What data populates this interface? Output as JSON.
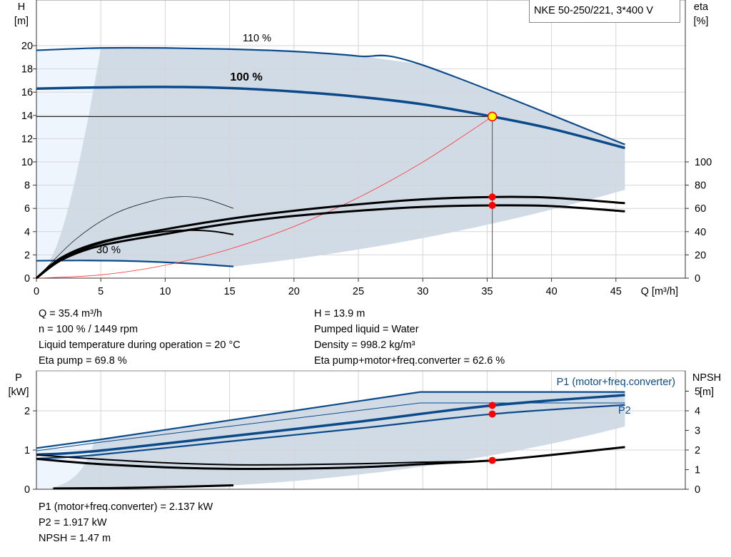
{
  "title": "NKE 50-250/221, 3*400 V",
  "colors": {
    "curve": "#0b4a8a",
    "shade": "#d0dbe6",
    "shade_light": "#eef5fc",
    "duty_point": "#ff0000",
    "system_curve": "#ff3030",
    "eta": "#000000"
  },
  "info_top_left": [
    "Q = 35.4 m³/h",
    "n = 100 % / 1449 rpm",
    "Liquid temperature during operation = 20 °C",
    "Eta pump = 69.8 %"
  ],
  "info_top_right": [
    "H = 13.9 m",
    "Pumped liquid = Water",
    "Density = 998.2 kg/m³",
    "Eta pump+motor+freq.converter = 62.6 %"
  ],
  "info_bottom": [
    "P1 (motor+freq.converter) = 2.137 kW",
    "P2 = 1.917 kW",
    "NPSH = 1.47 m"
  ],
  "chart_data": [
    {
      "type": "line",
      "ylabel": "H\n[m]",
      "y2label": "eta\n[%]",
      "xlabel": "Q [m³/h]",
      "xlim": [
        0,
        50
      ],
      "ylim": [
        0,
        24
      ],
      "y2lim": [
        0,
        240
      ],
      "xticks": [
        0,
        5,
        10,
        15,
        20,
        25,
        30,
        35,
        40,
        45
      ],
      "yticks": [
        0,
        2,
        4,
        6,
        8,
        10,
        12,
        14,
        16,
        18,
        20
      ],
      "y2ticks": [
        0,
        20,
        40,
        60,
        80,
        100
      ],
      "grid": true,
      "annotations": [
        "110 %",
        "100 %",
        "30 %"
      ],
      "duty_point": {
        "Q": 35.4,
        "H": 13.9,
        "eta_pump": 69.8,
        "eta_total": 62.6
      },
      "series": [
        {
          "name": "110 %",
          "axis": "H",
          "points": [
            [
              0,
              19.6
            ],
            [
              5,
              19.8
            ],
            [
              10,
              19.8
            ],
            [
              15,
              19.7
            ],
            [
              20,
              19.5
            ],
            [
              25,
              19.1
            ],
            [
              29.8,
              18.4
            ],
            [
              45.7,
              11.5
            ]
          ]
        },
        {
          "name": "100 %",
          "axis": "H",
          "points": [
            [
              0,
              16.3
            ],
            [
              4.5,
              16.4
            ],
            [
              10,
              16.45
            ],
            [
              15,
              16.35
            ],
            [
              20,
              16.05
            ],
            [
              25,
              15.6
            ],
            [
              30,
              14.95
            ],
            [
              35.4,
              13.9
            ],
            [
              40,
              12.85
            ],
            [
              45.7,
              11.2
            ]
          ]
        },
        {
          "name": "30 %",
          "axis": "H",
          "points": [
            [
              0,
              1.5
            ],
            [
              4,
              1.52
            ],
            [
              8,
              1.45
            ],
            [
              12,
              1.25
            ],
            [
              15.3,
              1.0
            ]
          ]
        },
        {
          "axis": "H",
          "kind": "system",
          "points": [
            [
              0,
              0
            ],
            [
              5,
              0.28
            ],
            [
              10,
              1.11
            ],
            [
              15,
              2.5
            ],
            [
              20,
              4.44
            ],
            [
              25,
              6.93
            ],
            [
              30,
              9.98
            ],
            [
              35.4,
              13.9
            ]
          ]
        },
        {
          "axis": "eta",
          "kind": "eta_pump",
          "points": [
            [
              0,
              0
            ],
            [
              2,
              18
            ],
            [
              5,
              31
            ],
            [
              10,
              42
            ],
            [
              15,
              51
            ],
            [
              20,
              58
            ],
            [
              25,
              63.5
            ],
            [
              30,
              67.8
            ],
            [
              35.4,
              69.8
            ],
            [
              40,
              69.2
            ],
            [
              45.7,
              64.5
            ]
          ]
        },
        {
          "axis": "eta",
          "kind": "eta_total",
          "points": [
            [
              0,
              0
            ],
            [
              2,
              16
            ],
            [
              5,
              28
            ],
            [
              10,
              38
            ],
            [
              15,
              47
            ],
            [
              20,
              53.5
            ],
            [
              25,
              58
            ],
            [
              30,
              61.3
            ],
            [
              35.4,
              62.6
            ],
            [
              40,
              62
            ],
            [
              45.7,
              57.5
            ]
          ]
        },
        {
          "axis": "eta",
          "kind": "eta_pump_30",
          "points": [
            [
              0,
              0
            ],
            [
              2,
              17
            ],
            [
              5,
              30
            ],
            [
              8,
              37
            ],
            [
              11,
              41
            ],
            [
              13.5,
              40.5
            ],
            [
              15.3,
              37.5
            ]
          ]
        },
        {
          "axis": "eta",
          "kind": "eta_max",
          "points": [
            [
              0,
              0
            ],
            [
              3,
              33
            ],
            [
              6,
              55
            ],
            [
              9,
              66.5
            ],
            [
              11,
              70
            ],
            [
              13,
              68.5
            ],
            [
              15.3,
              60
            ]
          ]
        }
      ]
    },
    {
      "type": "line",
      "ylabel": "P\n[kW]",
      "y2label": "NPSH\n[m]",
      "xlim": [
        0,
        50
      ],
      "ylim": [
        0,
        3
      ],
      "y2lim": [
        0,
        6
      ],
      "yticks": [
        0,
        1,
        2
      ],
      "y2ticks": [
        0,
        1,
        2,
        3,
        4,
        5
      ],
      "grid": true,
      "legend": [
        "P1 (motor+freq.converter)",
        "P2"
      ],
      "duty_point": {
        "Q": 35.4,
        "P1": 2.137,
        "P2": 1.917,
        "NPSH": 1.47
      },
      "series": [
        {
          "axis": "P",
          "kind": "p1_max",
          "points": [
            [
              0,
              1.05
            ],
            [
              5,
              1.27
            ],
            [
              29.8,
              2.48
            ],
            [
              45.7,
              2.48
            ]
          ]
        },
        {
          "axis": "P",
          "kind": "p2_max",
          "points": [
            [
              0,
              0.98
            ],
            [
              5,
              1.2
            ],
            [
              29.8,
              2.2
            ],
            [
              45.7,
              2.2
            ]
          ]
        },
        {
          "name": "P1 (motor+freq.converter)",
          "axis": "P",
          "points": [
            [
              0,
              0.88
            ],
            [
              4.5,
              0.97
            ],
            [
              15,
              1.35
            ],
            [
              25,
              1.72
            ],
            [
              35.4,
              2.137
            ],
            [
              45.7,
              2.4
            ]
          ]
        },
        {
          "name": "P2",
          "axis": "P",
          "points": [
            [
              0,
              0.78
            ],
            [
              4.5,
              0.87
            ],
            [
              15,
              1.22
            ],
            [
              25,
              1.55
            ],
            [
              35.4,
              1.917
            ],
            [
              45.7,
              2.15
            ]
          ]
        },
        {
          "axis": "P",
          "kind": "p_30",
          "points": [
            [
              1.3,
              0.02
            ],
            [
              8,
              0.04
            ],
            [
              15.3,
              0.1
            ]
          ]
        },
        {
          "axis": "NPSH",
          "kind": "npsh_upper",
          "points": [
            [
              0,
              1.75
            ],
            [
              4.5,
              1.55
            ],
            [
              10,
              1.35
            ],
            [
              15,
              1.25
            ],
            [
              20,
              1.25
            ],
            [
              25,
              1.3
            ],
            [
              30,
              1.38
            ],
            [
              35.4,
              1.47
            ],
            [
              40,
              1.75
            ],
            [
              45.7,
              2.15
            ]
          ]
        },
        {
          "axis": "NPSH",
          "kind": "npsh",
          "points": [
            [
              0,
              1.55
            ],
            [
              4.5,
              1.3
            ],
            [
              10,
              1.12
            ],
            [
              15,
              1.04
            ],
            [
              20,
              1.05
            ],
            [
              25,
              1.12
            ],
            [
              30,
              1.28
            ],
            [
              35.4,
              1.47
            ],
            [
              40,
              1.75
            ],
            [
              45.7,
              2.15
            ]
          ]
        }
      ]
    }
  ]
}
